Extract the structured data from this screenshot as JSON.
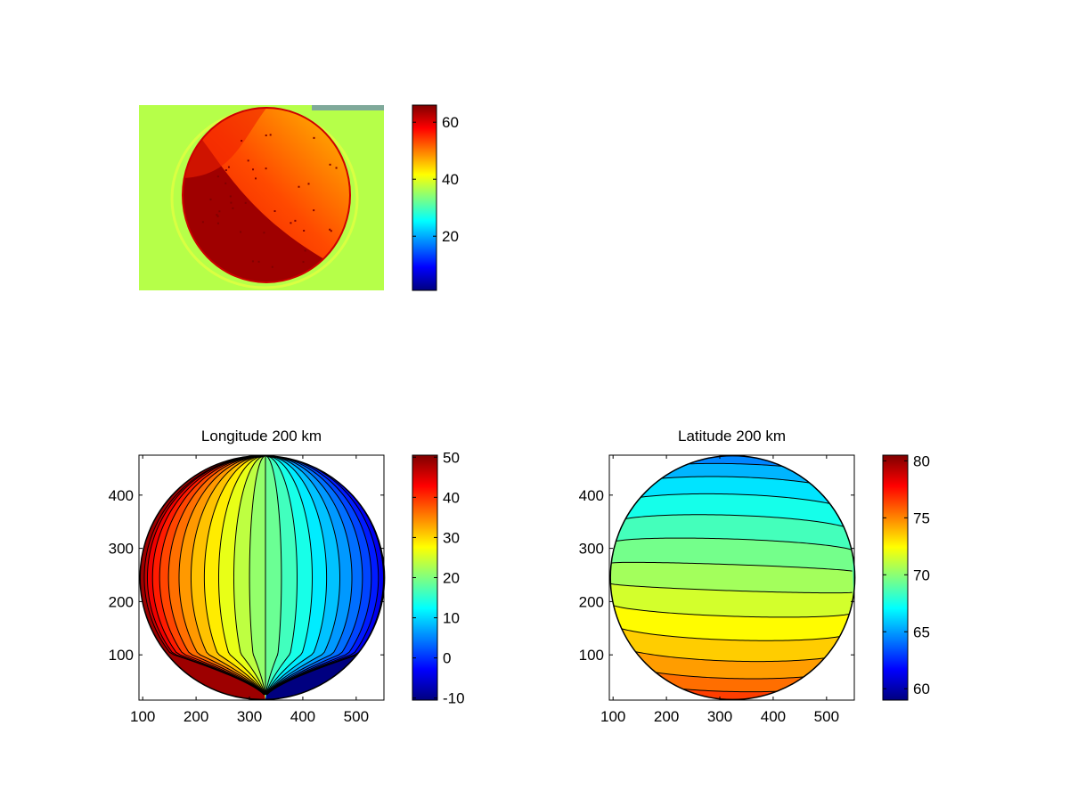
{
  "figure": {
    "background": "#ffffff"
  },
  "chart_data": [
    {
      "type": "heatmap",
      "title": "",
      "description_colormap": "jet",
      "colorbar": {
        "range": [
          1,
          66
        ],
        "ticks": [
          20,
          40,
          60
        ],
        "tick_labels": [
          "20",
          "40",
          "60"
        ]
      },
      "background_value": 37,
      "disk_values": {
        "bright_side": 52,
        "dark_side": 64
      }
    },
    {
      "type": "contour",
      "title": "Longitude 200 km",
      "xlim": [
        93,
        552
      ],
      "ylim": [
        15,
        475
      ],
      "xticks": [
        100,
        200,
        300,
        400,
        500
      ],
      "xtick_labels": [
        "100",
        "200",
        "300",
        "400",
        "500"
      ],
      "yticks": [
        100,
        200,
        300,
        400
      ],
      "ytick_labels": [
        "100",
        "200",
        "300",
        "400"
      ],
      "disk": {
        "cx": 324,
        "cy": 245,
        "r": 229
      },
      "value_range": [
        -10,
        50
      ],
      "center_value": 20,
      "level_step": 2.5,
      "colorbar": {
        "range": [
          -10.5,
          50.5
        ],
        "ticks": [
          -10,
          0,
          10,
          20,
          30,
          40,
          50
        ],
        "tick_labels": [
          "-10",
          "0",
          "10",
          "20",
          "30",
          "40",
          "50"
        ]
      }
    },
    {
      "type": "contour",
      "title": "Latitude 200 km",
      "xlim": [
        93,
        552
      ],
      "ylim": [
        15,
        475
      ],
      "xticks": [
        100,
        200,
        300,
        400,
        500
      ],
      "xtick_labels": [
        "100",
        "200",
        "300",
        "400",
        "500"
      ],
      "yticks": [
        100,
        200,
        300,
        400
      ],
      "ytick_labels": [
        "100",
        "200",
        "300",
        "400"
      ],
      "disk": {
        "cx": 324,
        "cy": 245,
        "r": 229
      },
      "value_range": [
        61,
        80
      ],
      "center_value": 70.5,
      "level_step": 1,
      "colorbar": {
        "range": [
          59,
          80.5
        ],
        "ticks": [
          60,
          65,
          70,
          75,
          80
        ],
        "tick_labels": [
          "60",
          "65",
          "70",
          "75",
          "80"
        ]
      }
    }
  ]
}
